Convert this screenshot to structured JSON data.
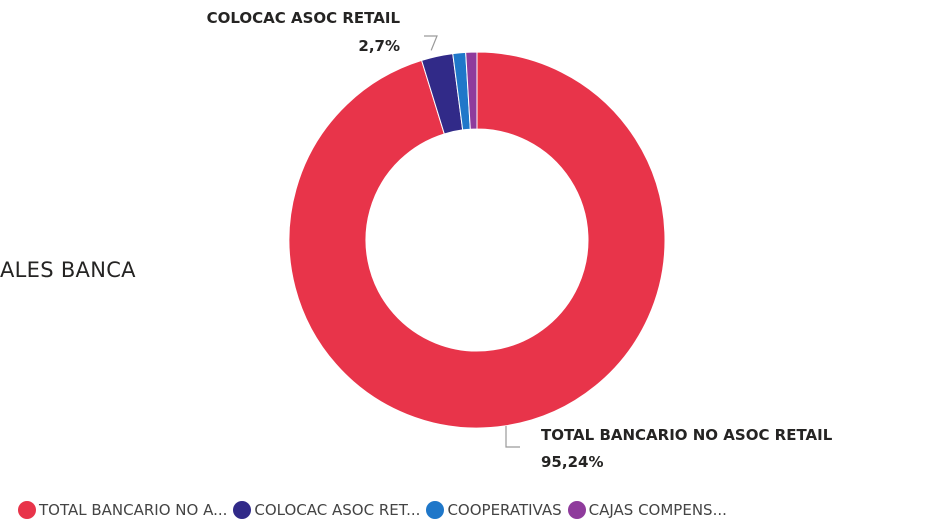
{
  "partial_label": "ALES BANCA",
  "legend": {
    "items": [
      {
        "label": "TOTAL BANCARIO NO A...",
        "color": "#e8344a"
      },
      {
        "label": "COLOCAC ASOC RET...",
        "color": "#312a88"
      },
      {
        "label": "COOPERATIVAS",
        "color": "#1f77c9"
      },
      {
        "label": "CAJAS COMPENS...",
        "color": "#8f3b9c"
      }
    ]
  },
  "chart_data": {
    "type": "pie",
    "style": "donut",
    "categories": [
      "TOTAL BANCARIO NO ASOC RETAIL",
      "COLOCAC ASOC RETAIL",
      "COOPERATIVAS",
      "CAJAS COMPENSACION"
    ],
    "values": [
      95.24,
      2.7,
      1.1,
      0.96
    ],
    "colors": [
      "#e8344a",
      "#312a88",
      "#1f77c9",
      "#8f3b9c"
    ],
    "data_labels": [
      {
        "name": "TOTAL BANCARIO NO ASOC RETAIL",
        "value": "95,24%"
      },
      {
        "name": "COLOCAC ASOC RETAIL",
        "value": "2,7%"
      }
    ],
    "legend_position": "bottom-left"
  }
}
